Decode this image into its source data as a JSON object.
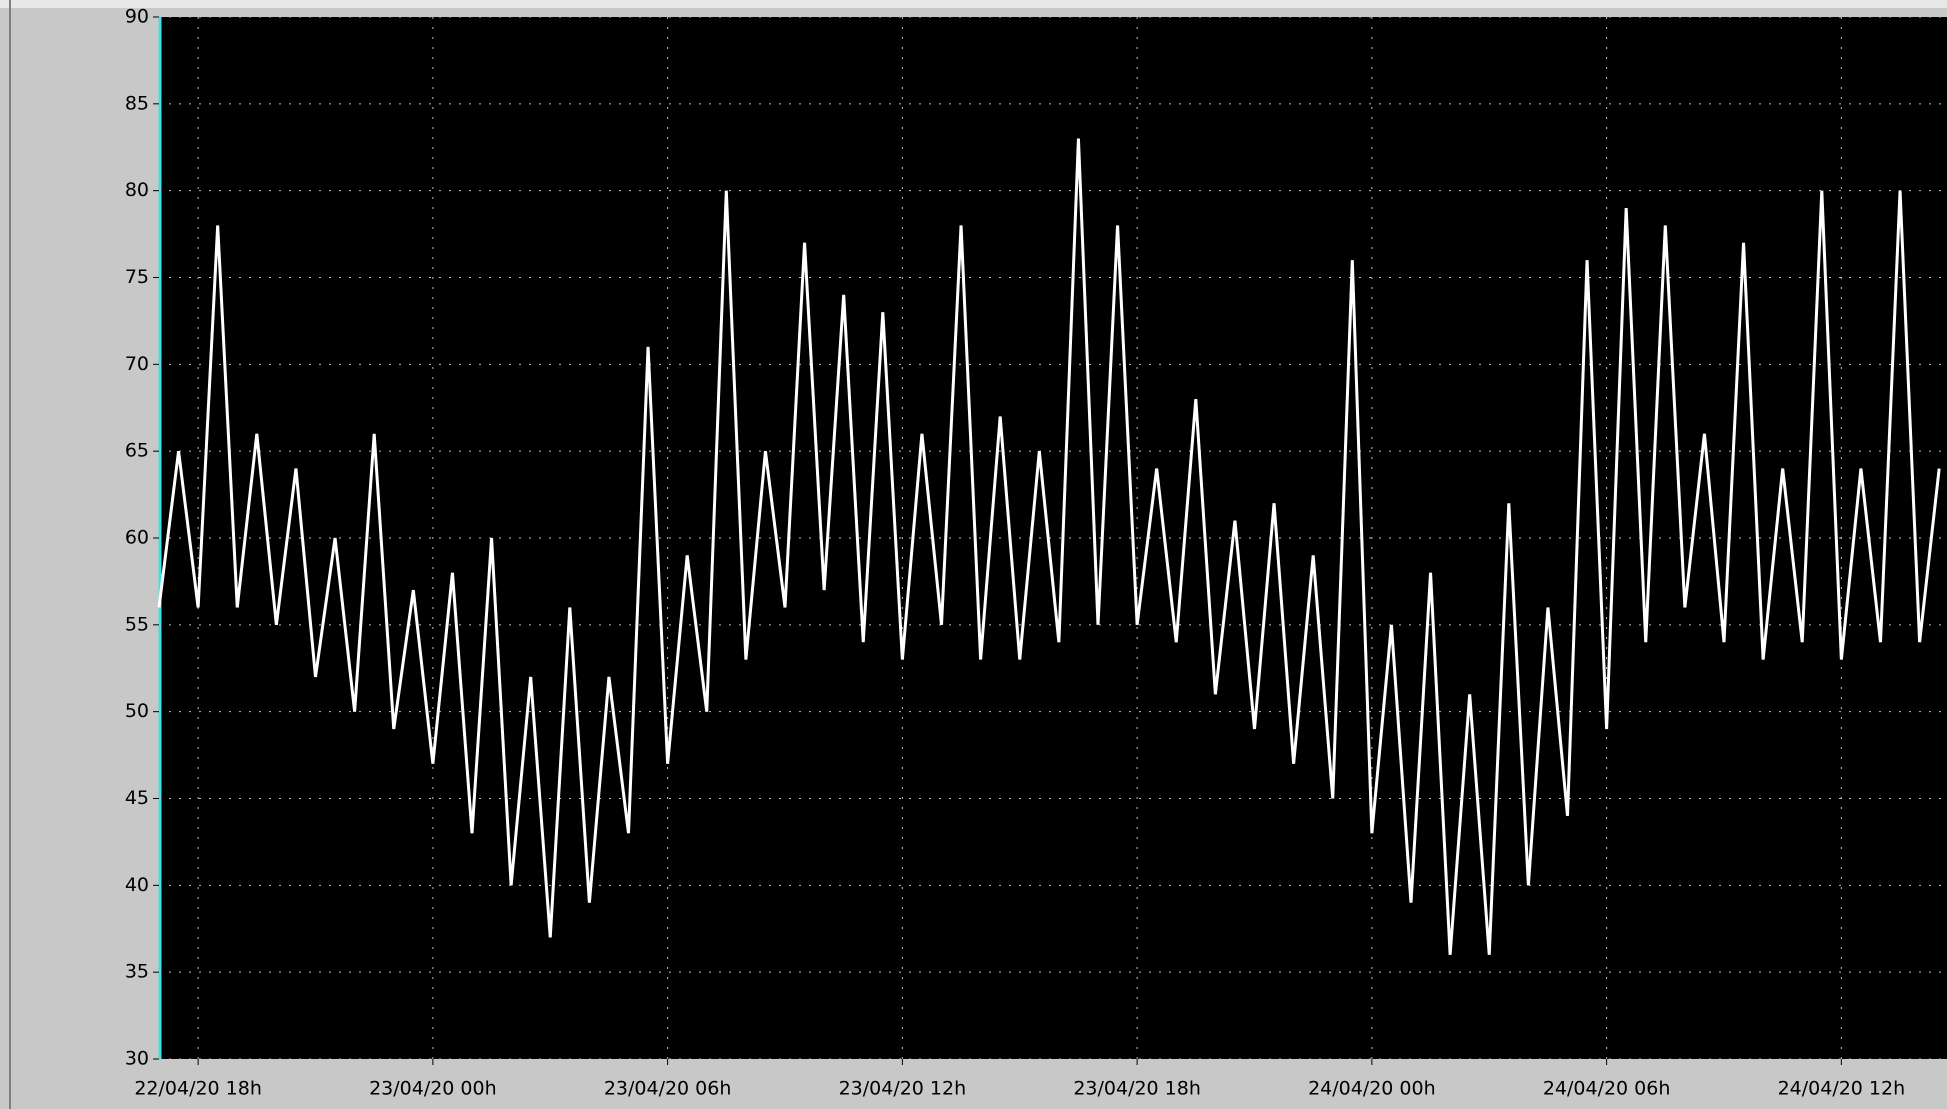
{
  "chart_data": {
    "type": "line",
    "color": "#ffffff",
    "x": [
      17,
      17.5,
      18,
      18.5,
      19,
      19.5,
      20,
      20.5,
      21,
      21.5,
      22,
      22.5,
      23,
      23.5,
      24,
      24.5,
      25,
      25.5,
      26,
      26.5,
      27,
      27.5,
      28,
      28.5,
      29,
      29.5,
      30,
      30.5,
      31,
      31.5,
      32,
      32.5,
      33,
      33.5,
      34,
      34.5,
      35,
      35.5,
      36,
      36.5,
      37,
      37.5,
      38,
      38.5,
      39,
      39.5,
      40,
      40.5,
      41,
      41.5,
      42,
      42.5,
      43,
      43.5,
      44,
      44.5,
      45,
      45.5,
      46,
      46.5,
      47,
      47.5,
      48,
      48.5,
      49,
      49.5,
      50,
      50.5,
      51,
      51.5,
      52,
      52.5,
      53,
      53.5,
      54,
      54.5,
      55,
      55.5,
      56,
      56.5,
      57,
      57.5,
      58,
      58.5,
      59,
      59.5,
      60,
      60.5,
      61,
      61.5,
      62,
      62.5
    ],
    "values": [
      56,
      65,
      56,
      78,
      56,
      66,
      55,
      64,
      52,
      60,
      50,
      66,
      49,
      57,
      47,
      58,
      43,
      60,
      40,
      52,
      37,
      56,
      39,
      52,
      43,
      71,
      47,
      59,
      50,
      80,
      53,
      65,
      56,
      77,
      57,
      74,
      54,
      73,
      53,
      66,
      55,
      78,
      53,
      67,
      53,
      65,
      54,
      83,
      55,
      78,
      55,
      64,
      54,
      68,
      51,
      61,
      49,
      62,
      47,
      59,
      45,
      76,
      43,
      55,
      39,
      58,
      36,
      51,
      36,
      62,
      40,
      56,
      44,
      76,
      49,
      79,
      54,
      78,
      56,
      66,
      54,
      77,
      53,
      64,
      54,
      80,
      53,
      64,
      54,
      80,
      54,
      64
    ],
    "xlim": [
      17,
      62.7
    ],
    "ylim": [
      30,
      90
    ],
    "xticks": [
      {
        "value": 18,
        "label": "22/04/20 18h"
      },
      {
        "value": 24,
        "label": "23/04/20 00h"
      },
      {
        "value": 30,
        "label": "23/04/20 06h"
      },
      {
        "value": 36,
        "label": "23/04/20 12h"
      },
      {
        "value": 42,
        "label": "23/04/20 18h"
      },
      {
        "value": 48,
        "label": "24/04/20 00h"
      },
      {
        "value": 54,
        "label": "24/04/20 06h"
      },
      {
        "value": 60,
        "label": "24/04/20 12h"
      }
    ],
    "yticks": [
      30,
      35,
      40,
      45,
      50,
      55,
      60,
      65,
      70,
      75,
      80,
      85,
      90
    ],
    "grid": true
  }
}
